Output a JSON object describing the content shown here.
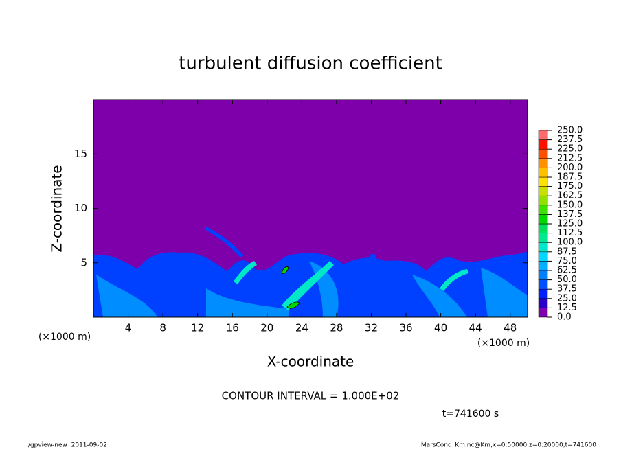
{
  "chart_data": {
    "type": "heatmap",
    "title": "turbulent diffusion coefficient",
    "xlabel": "X-coordinate",
    "ylabel": "Z-coordinate",
    "x_unit": "(×1000 m)",
    "xlim": [
      0,
      50
    ],
    "xticks": [
      4,
      8,
      12,
      16,
      20,
      24,
      28,
      32,
      36,
      40,
      44,
      48
    ],
    "ylim": [
      0,
      20
    ],
    "yticks": [
      5,
      10,
      15
    ],
    "colorbar": {
      "levels": [
        {
          "value": 0,
          "label": "0.0"
        },
        {
          "value": 12.5,
          "label": "12.5"
        },
        {
          "value": 25,
          "label": "25.0"
        },
        {
          "value": 37.5,
          "label": "37.5"
        },
        {
          "value": 50,
          "label": "50.0"
        },
        {
          "value": 62.5,
          "label": "62.5"
        },
        {
          "value": 75,
          "label": "75.0"
        },
        {
          "value": 87.5,
          "label": "87.5"
        },
        {
          "value": 100,
          "label": "100.0"
        },
        {
          "value": 112.5,
          "label": "112.5"
        },
        {
          "value": 125,
          "label": "125.0"
        },
        {
          "value": 137.5,
          "label": "137.5"
        },
        {
          "value": 150,
          "label": "150.0"
        },
        {
          "value": 162.5,
          "label": "162.5"
        },
        {
          "value": 175,
          "label": "175.0"
        },
        {
          "value": 187.5,
          "label": "187.5"
        },
        {
          "value": 200,
          "label": "200.0"
        },
        {
          "value": 212.5,
          "label": "212.5"
        },
        {
          "value": 225,
          "label": "225.0"
        },
        {
          "value": 237.5,
          "label": "237.5"
        },
        {
          "value": 250,
          "label": "250.0"
        }
      ],
      "colors": [
        "#7d00aa",
        "#2800c8",
        "#0020ff",
        "#0050ff",
        "#0080ff",
        "#00b0ff",
        "#00d8ff",
        "#00e8c8",
        "#00e890",
        "#00e058",
        "#00d800",
        "#40e000",
        "#90e000",
        "#c8e000",
        "#ffe000",
        "#ffc000",
        "#ff9000",
        "#ff5000",
        "#ff1000",
        "#ff6a6a"
      ]
    },
    "contour_note": "CONTOUR INTERVAL = 1.000E+02",
    "time_label": "t=741600 s",
    "footer_left": "./gpview-new  2011-09-02",
    "footer_right": "MarsCond_Km.nc@Km,x=0:50000,z=0:20000,t=741600"
  }
}
